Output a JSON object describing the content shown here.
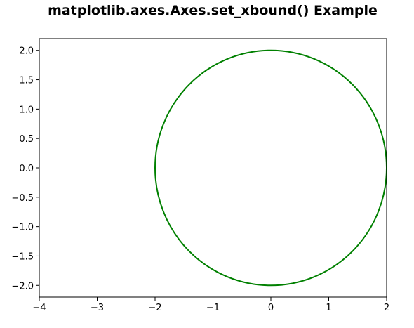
{
  "chart_data": {
    "type": "line",
    "title": "matplotlib.axes.Axes.set_xbound() Example",
    "xlabel": "",
    "ylabel": "",
    "xlim": [
      -4,
      2
    ],
    "ylim": [
      -2.2,
      2.2
    ],
    "xticks": [
      -4,
      -3,
      -2,
      -1,
      0,
      1,
      2
    ],
    "xtick_labels": [
      "−4",
      "−3",
      "−2",
      "−1",
      "0",
      "1",
      "2"
    ],
    "yticks": [
      -2.0,
      -1.5,
      -1.0,
      -0.5,
      0.0,
      0.5,
      1.0,
      1.5,
      2.0
    ],
    "ytick_labels": [
      "−2.0",
      "−1.5",
      "−1.0",
      "−0.5",
      "0.0",
      "0.5",
      "1.0",
      "1.5",
      "2.0"
    ],
    "grid": false,
    "series": [
      {
        "shape": "circle",
        "center": [
          0,
          0
        ],
        "radius": 2,
        "color": "#008000"
      }
    ]
  }
}
